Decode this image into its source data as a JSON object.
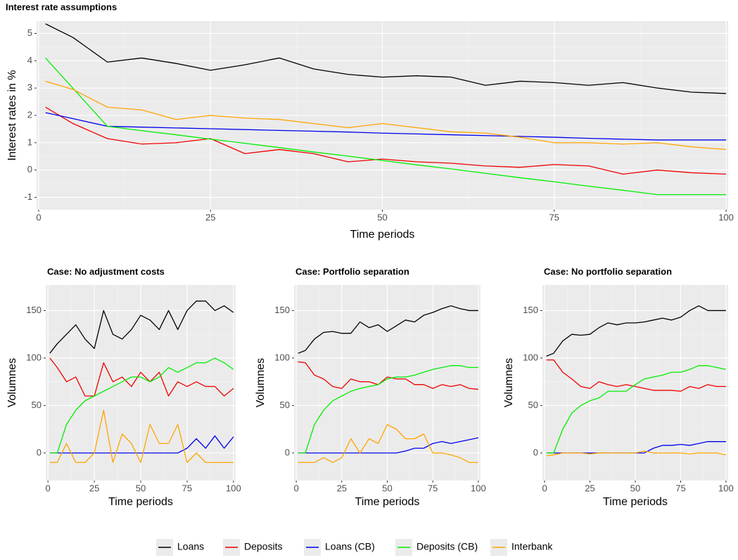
{
  "chart_data": [
    {
      "type": "line",
      "title": "Interest rate assumptions",
      "xlabel": "Time periods",
      "ylabel": "Interest rates in %",
      "x": [
        1,
        5,
        10,
        15,
        20,
        25,
        30,
        35,
        40,
        45,
        50,
        55,
        60,
        65,
        70,
        75,
        80,
        85,
        90,
        95,
        100
      ],
      "series": [
        {
          "values": [
            5.35,
            4.85,
            3.95,
            4.1,
            3.9,
            3.65,
            3.85,
            4.1,
            3.7,
            3.5,
            3.4,
            3.45,
            3.4,
            3.1,
            3.25,
            3.2,
            3.1,
            3.2,
            3.0,
            2.85,
            2.8
          ]
        },
        {
          "values": [
            2.3,
            1.7,
            1.15,
            0.95,
            1.0,
            1.15,
            0.6,
            0.75,
            0.6,
            0.3,
            0.4,
            0.3,
            0.25,
            0.15,
            0.1,
            0.2,
            0.15,
            -0.15,
            0.0,
            -0.1,
            -0.15
          ]
        },
        {
          "values": [
            2.1,
            1.88,
            1.6,
            1.57,
            1.54,
            1.51,
            1.48,
            1.45,
            1.42,
            1.39,
            1.35,
            1.32,
            1.29,
            1.26,
            1.23,
            1.2,
            1.16,
            1.13,
            1.1,
            1.1,
            1.1
          ]
        },
        {
          "values": [
            4.1,
            2.99,
            1.6,
            1.44,
            1.29,
            1.13,
            0.98,
            0.82,
            0.66,
            0.51,
            0.35,
            0.19,
            0.04,
            -0.12,
            -0.28,
            -0.43,
            -0.59,
            -0.74,
            -0.9,
            -0.9,
            -0.9
          ]
        },
        {
          "values": [
            3.25,
            2.95,
            2.3,
            2.2,
            1.85,
            2.0,
            1.9,
            1.85,
            1.7,
            1.55,
            1.7,
            1.55,
            1.4,
            1.35,
            1.2,
            1.0,
            1.0,
            0.95,
            1.0,
            0.85,
            0.75
          ]
        }
      ],
      "xlim": [
        -0.3,
        100.3
      ],
      "ylim": [
        -1.45,
        5.45
      ],
      "xticks": [
        0,
        25,
        50,
        75,
        100
      ],
      "yticks": [
        -1,
        0,
        1,
        2,
        3,
        4,
        5
      ],
      "grid": true
    },
    {
      "type": "line",
      "title": "Case: No adjustment costs",
      "xlabel": "Time periods",
      "ylabel": "Volumnes",
      "x": [
        1,
        5,
        10,
        15,
        20,
        25,
        30,
        35,
        40,
        45,
        50,
        55,
        60,
        65,
        70,
        75,
        80,
        85,
        90,
        95,
        100
      ],
      "series": [
        {
          "values": [
            105,
            115,
            125,
            135,
            120,
            110,
            150,
            125,
            120,
            130,
            145,
            140,
            130,
            150,
            130,
            150,
            160,
            160,
            150,
            155,
            148
          ]
        },
        {
          "values": [
            100,
            90,
            75,
            80,
            60,
            60,
            95,
            75,
            80,
            70,
            85,
            75,
            85,
            60,
            75,
            70,
            75,
            70,
            70,
            60,
            68
          ]
        },
        {
          "values": [
            0,
            0,
            0,
            0,
            0,
            0,
            0,
            0,
            0,
            0,
            0,
            0,
            0,
            0,
            0,
            5,
            15,
            5,
            18,
            5,
            17
          ]
        },
        {
          "values": [
            0,
            0,
            30,
            45,
            55,
            60,
            65,
            70,
            75,
            80,
            80,
            75,
            80,
            90,
            85,
            90,
            95,
            95,
            100,
            95,
            88
          ]
        },
        {
          "values": [
            -10,
            -10,
            10,
            -10,
            -10,
            0,
            45,
            -10,
            20,
            10,
            -10,
            30,
            10,
            10,
            30,
            -10,
            0,
            -10,
            -10,
            -10,
            -10
          ]
        }
      ],
      "xlim": [
        -1.2,
        101.2
      ],
      "ylim": [
        -29,
        177
      ],
      "xticks": [
        0,
        25,
        50,
        75,
        100
      ],
      "yticks": [
        0,
        50,
        100,
        150
      ],
      "grid": true
    },
    {
      "type": "line",
      "title": "Case: Portfolio separation",
      "xlabel": "Time periods",
      "ylabel": "Volumnes",
      "x": [
        1,
        5,
        10,
        15,
        20,
        25,
        30,
        35,
        40,
        45,
        50,
        55,
        60,
        65,
        70,
        75,
        80,
        85,
        90,
        95,
        100
      ],
      "series": [
        {
          "values": [
            105,
            108,
            120,
            127,
            128,
            126,
            126,
            138,
            132,
            135,
            128,
            134,
            140,
            138,
            145,
            148,
            152,
            155,
            152,
            150,
            150
          ]
        },
        {
          "values": [
            96,
            95,
            82,
            78,
            70,
            68,
            78,
            75,
            75,
            72,
            80,
            78,
            78,
            72,
            72,
            68,
            72,
            70,
            72,
            68,
            67
          ]
        },
        {
          "values": [
            0,
            0,
            0,
            0,
            0,
            0,
            0,
            0,
            0,
            0,
            0,
            0,
            2,
            5,
            5,
            10,
            12,
            10,
            12,
            14,
            16
          ]
        },
        {
          "values": [
            0,
            0,
            30,
            45,
            55,
            60,
            65,
            68,
            70,
            72,
            78,
            80,
            80,
            82,
            85,
            88,
            90,
            92,
            92,
            90,
            90
          ]
        },
        {
          "values": [
            -10,
            -10,
            -10,
            -5,
            -10,
            -5,
            15,
            0,
            15,
            10,
            30,
            25,
            15,
            15,
            20,
            0,
            0,
            -2,
            -5,
            -10,
            -10
          ]
        }
      ],
      "xlim": [
        -1.2,
        101.2
      ],
      "ylim": [
        -29,
        177
      ],
      "xticks": [
        0,
        25,
        50,
        75,
        100
      ],
      "yticks": [
        0,
        50,
        100,
        150
      ],
      "grid": true
    },
    {
      "type": "line",
      "title": "Case: No portfolio separation",
      "xlabel": "Time periods",
      "ylabel": "Volumnes",
      "x": [
        1,
        5,
        10,
        15,
        20,
        25,
        30,
        35,
        40,
        45,
        50,
        55,
        60,
        65,
        70,
        75,
        80,
        85,
        90,
        95,
        100
      ],
      "series": [
        {
          "values": [
            102,
            105,
            118,
            125,
            124,
            125,
            132,
            137,
            135,
            137,
            137,
            138,
            140,
            142,
            140,
            143,
            150,
            155,
            150,
            150,
            150
          ]
        },
        {
          "values": [
            98,
            98,
            85,
            78,
            70,
            68,
            75,
            72,
            70,
            72,
            70,
            68,
            66,
            66,
            66,
            65,
            70,
            68,
            72,
            70,
            70
          ]
        },
        {
          "values": [
            0,
            0,
            0,
            0,
            0,
            0,
            0,
            0,
            0,
            0,
            0,
            0,
            5,
            8,
            8,
            9,
            8,
            10,
            12,
            12,
            12
          ]
        },
        {
          "values": [
            0,
            0,
            25,
            42,
            50,
            55,
            58,
            65,
            65,
            65,
            72,
            78,
            80,
            82,
            85,
            85,
            88,
            92,
            92,
            90,
            88
          ]
        },
        {
          "values": [
            -3,
            -2,
            0,
            0,
            0,
            -1,
            0,
            0,
            0,
            0,
            0,
            2,
            0,
            0,
            0,
            0,
            -1,
            0,
            0,
            0,
            -2
          ]
        }
      ],
      "xlim": [
        -1.2,
        101.2
      ],
      "ylim": [
        -29,
        177
      ],
      "xticks": [
        0,
        25,
        50,
        75,
        100
      ],
      "yticks": [
        0,
        50,
        100,
        150
      ],
      "grid": true
    }
  ],
  "legend": [
    {
      "name": "Loans",
      "color": "#000000"
    },
    {
      "name": "Deposits",
      "color": "#ee0000"
    },
    {
      "name": "Loans (CB)",
      "color": "#0000ee"
    },
    {
      "name": "Deposits (CB)",
      "color": "#00ee00"
    },
    {
      "name": "Interbank",
      "color": "#ffa500"
    }
  ]
}
